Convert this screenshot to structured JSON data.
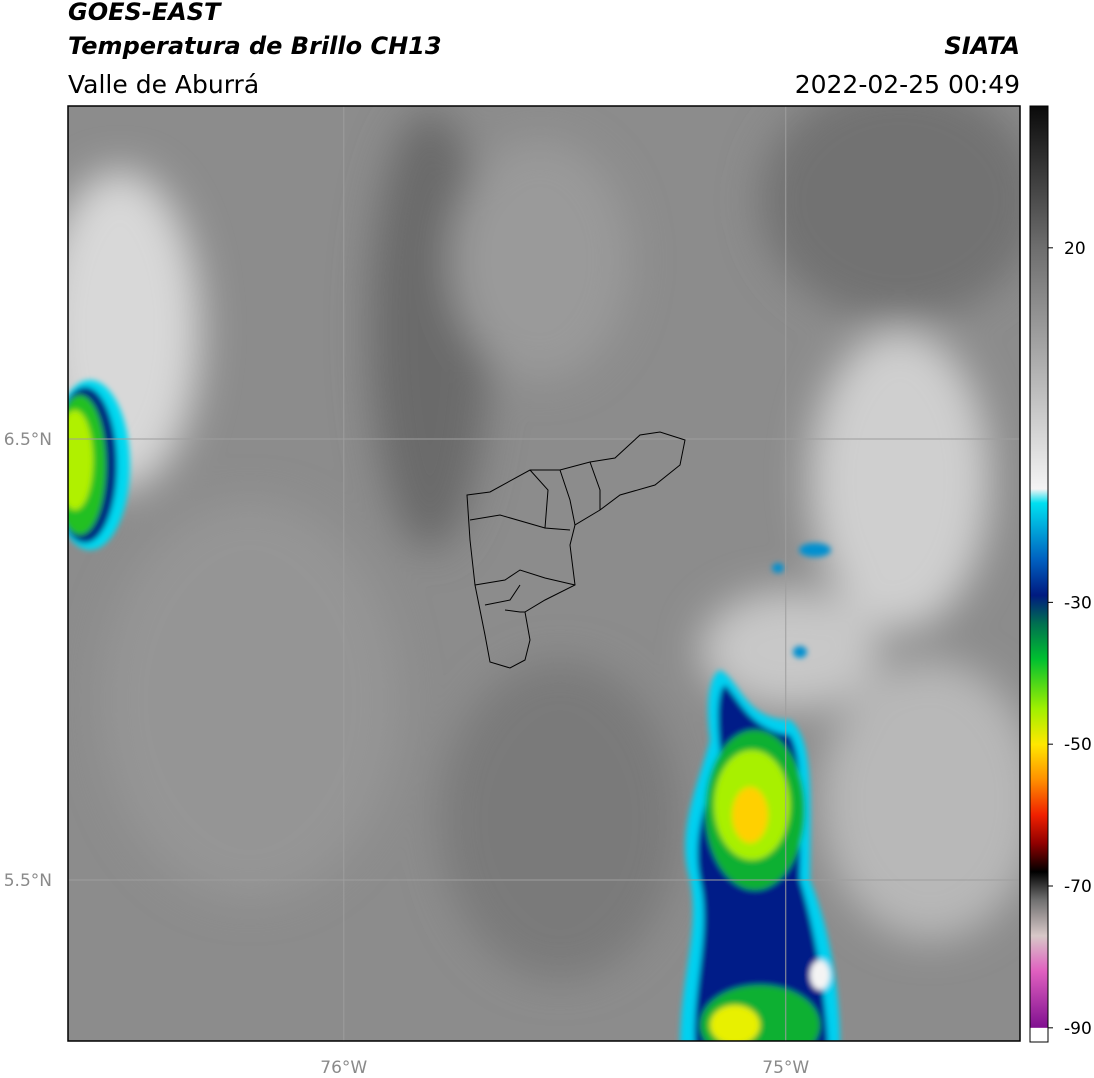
{
  "header": {
    "title": "GOES-EAST",
    "subtitle": "Temperatura de Brillo CH13",
    "region": "Valle de Aburrá",
    "source": "SIATA",
    "timestamp": "2022-02-25 00:49"
  },
  "map": {
    "xlim": [
      -76.624,
      -74.47
    ],
    "ylim": [
      5.135,
      7.255
    ],
    "xticks": [
      {
        "value": -76,
        "label": "76°W"
      },
      {
        "value": -75,
        "label": "75°W"
      }
    ],
    "yticks": [
      {
        "value": 6.5,
        "label": "6.5°N"
      },
      {
        "value": 5.5,
        "label": "5.5°N"
      }
    ],
    "grid": true
  },
  "colorbar": {
    "lim": [
      -92,
      40
    ],
    "ticks": [
      20,
      -30,
      -50,
      -70,
      -90
    ],
    "stops": [
      {
        "value": 40,
        "color": "#0a0a0a"
      },
      {
        "value": 30,
        "color": "#3c3c3c"
      },
      {
        "value": 20,
        "color": "#6e6e6e"
      },
      {
        "value": 5,
        "color": "#a8a8a8"
      },
      {
        "value": -14,
        "color": "#f4f4f4"
      },
      {
        "value": -16,
        "color": "#00e0f0"
      },
      {
        "value": -24,
        "color": "#0060c0"
      },
      {
        "value": -29,
        "color": "#001a80"
      },
      {
        "value": -33,
        "color": "#007050"
      },
      {
        "value": -38,
        "color": "#00c030"
      },
      {
        "value": -45,
        "color": "#a0f000"
      },
      {
        "value": -50,
        "color": "#ffe800"
      },
      {
        "value": -55,
        "color": "#ff9000"
      },
      {
        "value": -60,
        "color": "#f02000"
      },
      {
        "value": -64,
        "color": "#900000"
      },
      {
        "value": -68,
        "color": "#000000"
      },
      {
        "value": -72,
        "color": "#707070"
      },
      {
        "value": -77,
        "color": "#d8c8c8"
      },
      {
        "value": -82,
        "color": "#e060c0"
      },
      {
        "value": -90,
        "color": "#801090"
      }
    ]
  }
}
